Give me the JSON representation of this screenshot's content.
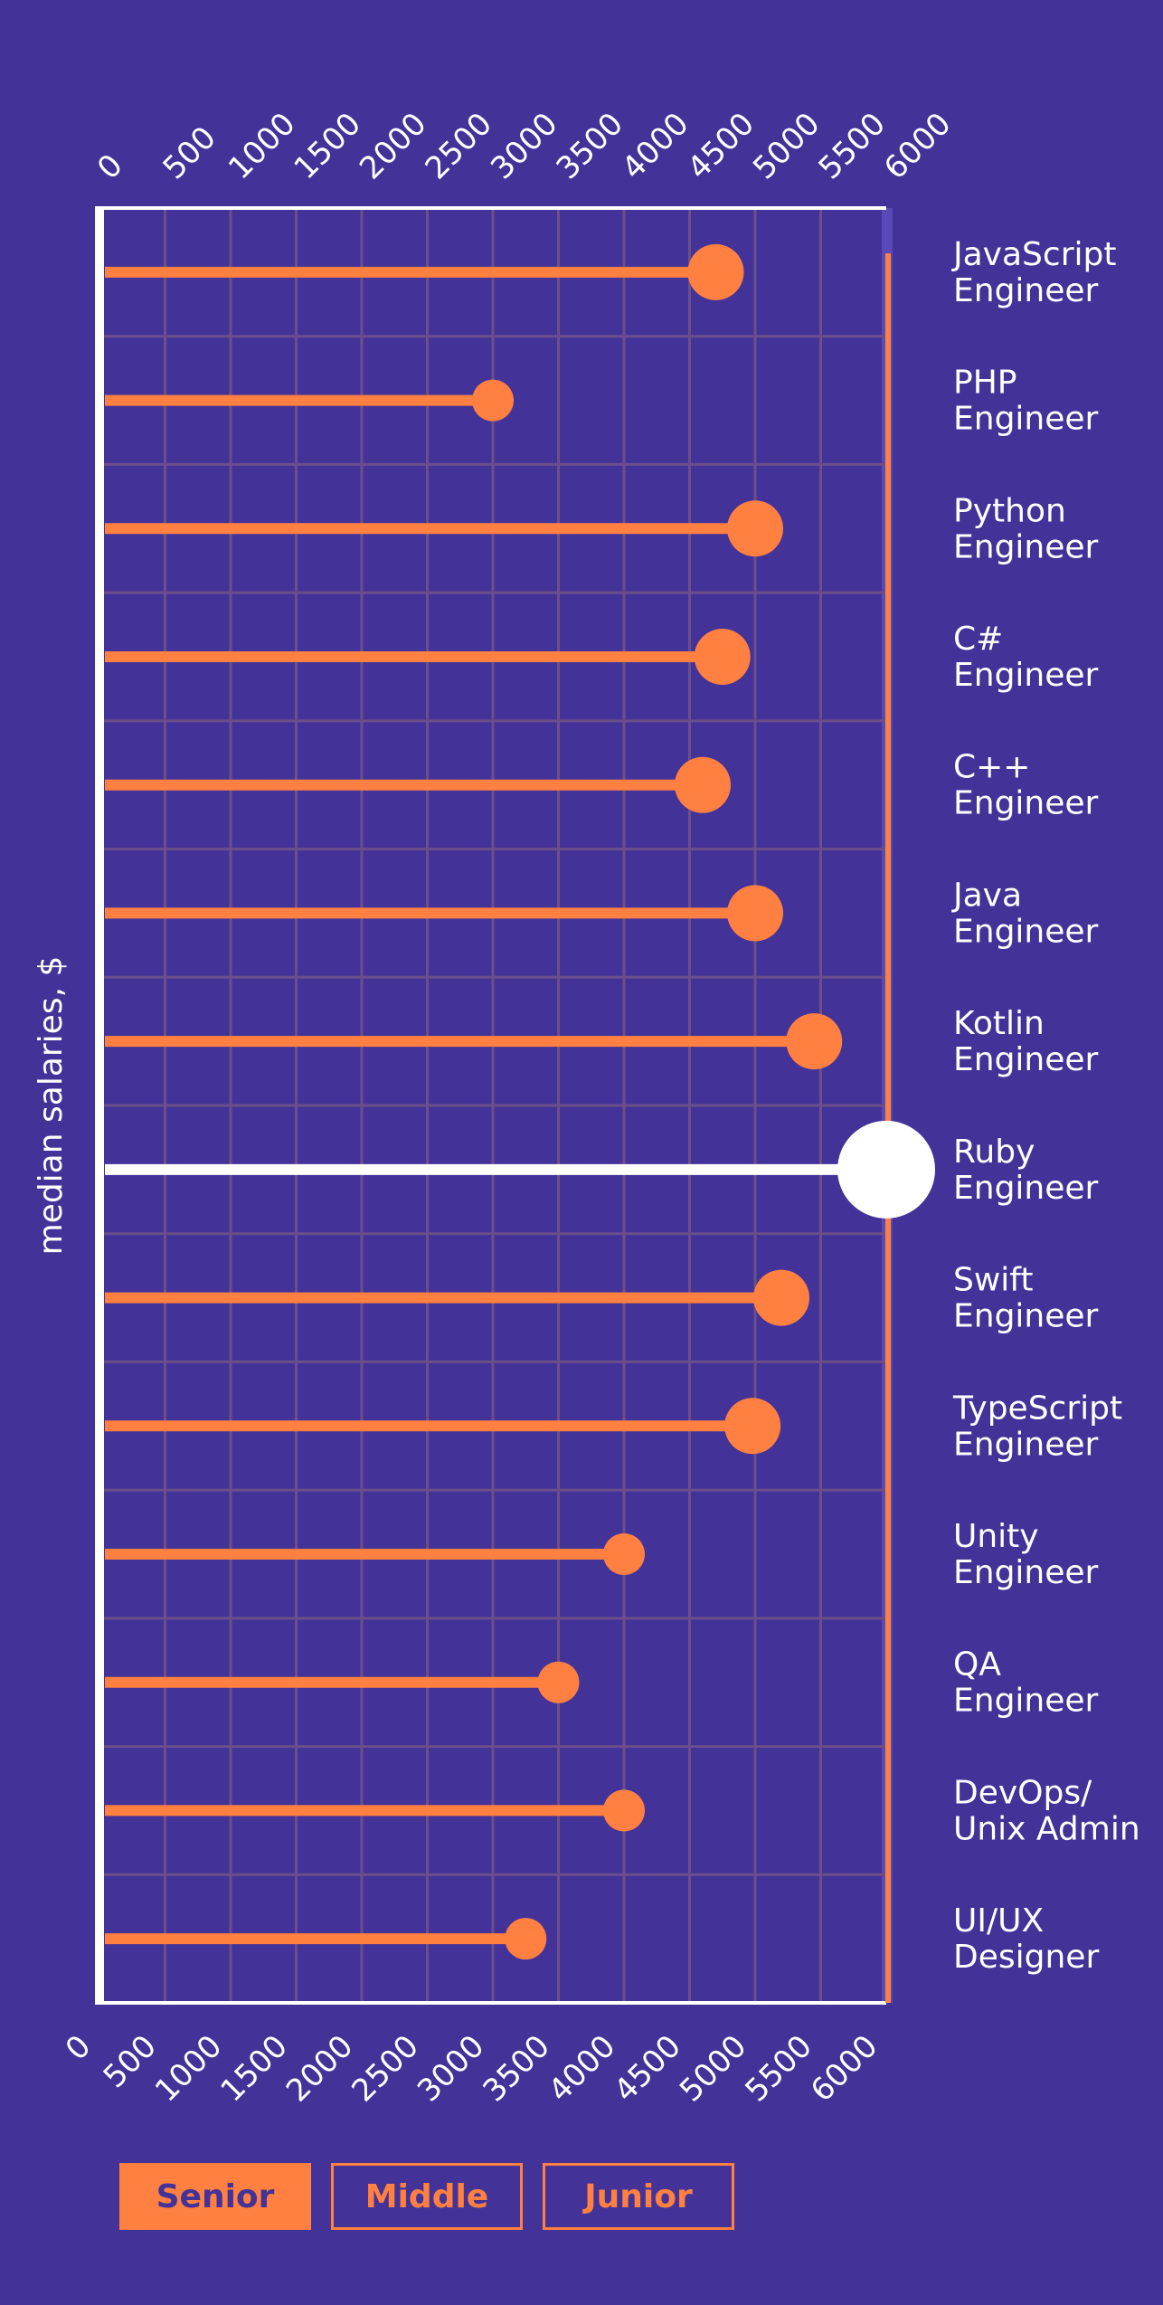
{
  "chart_data": {
    "type": "lollipop",
    "ylabel": "median salaries, $",
    "xlim": [
      0,
      6000
    ],
    "x_ticks": [
      0,
      500,
      1000,
      1500,
      2000,
      2500,
      3000,
      3500,
      4000,
      4500,
      5000,
      5500,
      6000
    ],
    "categories": [
      [
        "JavaScript",
        "Engineer"
      ],
      [
        "PHP",
        "Engineer"
      ],
      [
        "Python",
        "Engineer"
      ],
      [
        "C#",
        "Engineer"
      ],
      [
        "C++",
        "Engineer"
      ],
      [
        "Java",
        "Engineer"
      ],
      [
        "Kotlin",
        "Engineer"
      ],
      [
        "Ruby",
        "Engineer"
      ],
      [
        "Swift",
        "Engineer"
      ],
      [
        "TypeScript",
        "Engineer"
      ],
      [
        "Unity",
        "Engineer"
      ],
      [
        "QA",
        "Engineer"
      ],
      [
        "DevOps/",
        "Unix Admin"
      ],
      [
        "UI/UX",
        "Designer"
      ]
    ],
    "values": [
      4700,
      3000,
      5000,
      4750,
      4600,
      5000,
      5450,
      6000,
      5200,
      4980,
      4000,
      3500,
      4000,
      3250
    ],
    "highlight_index": 7,
    "grid": true,
    "colors": {
      "background": "#433399",
      "accent": "#ff8040",
      "highlight": "#ffffff",
      "grid": "#6b4f8a",
      "right_band": "#5a49b8"
    }
  },
  "legend": {
    "items": [
      {
        "label": "Senior",
        "active": true
      },
      {
        "label": "Middle",
        "active": false
      },
      {
        "label": "Junior",
        "active": false
      }
    ]
  }
}
